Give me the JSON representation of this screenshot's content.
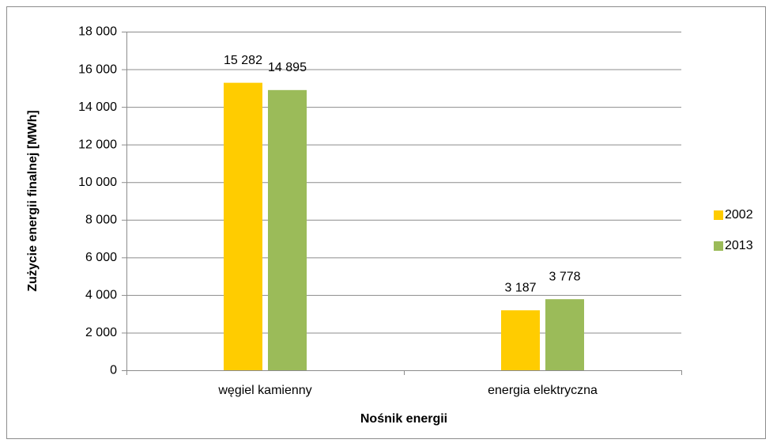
{
  "chart_data": {
    "type": "bar",
    "categories": [
      "węgiel kamienny",
      "energia elektryczna"
    ],
    "series": [
      {
        "name": "2002",
        "color": "#ffcc00",
        "values": [
          15282,
          3187
        ],
        "value_labels": [
          "15 282",
          "3 187"
        ]
      },
      {
        "name": "2013",
        "color": "#9bbb59",
        "values": [
          14895,
          3778
        ],
        "value_labels": [
          "14 895",
          "3 778"
        ]
      }
    ],
    "ylabel": "Zużycie energii finalnej [MWh]",
    "xlabel": "Nośnik energii",
    "ylim": [
      0,
      18000
    ],
    "yticks": [
      0,
      {
        "value": 2000,
        "label": "2 000"
      },
      {
        "value": 4000,
        "label": "4 000"
      },
      {
        "value": 6000,
        "label": "6 000"
      },
      {
        "value": 8000,
        "label": "8 000"
      },
      {
        "value": 10000,
        "label": "10 000"
      },
      {
        "value": 12000,
        "label": "12 000"
      },
      {
        "value": 14000,
        "label": "14 000"
      },
      {
        "value": 16000,
        "label": "16 000"
      },
      {
        "value": 18000,
        "label": "18 000"
      }
    ],
    "grid": true,
    "legend": "right"
  }
}
